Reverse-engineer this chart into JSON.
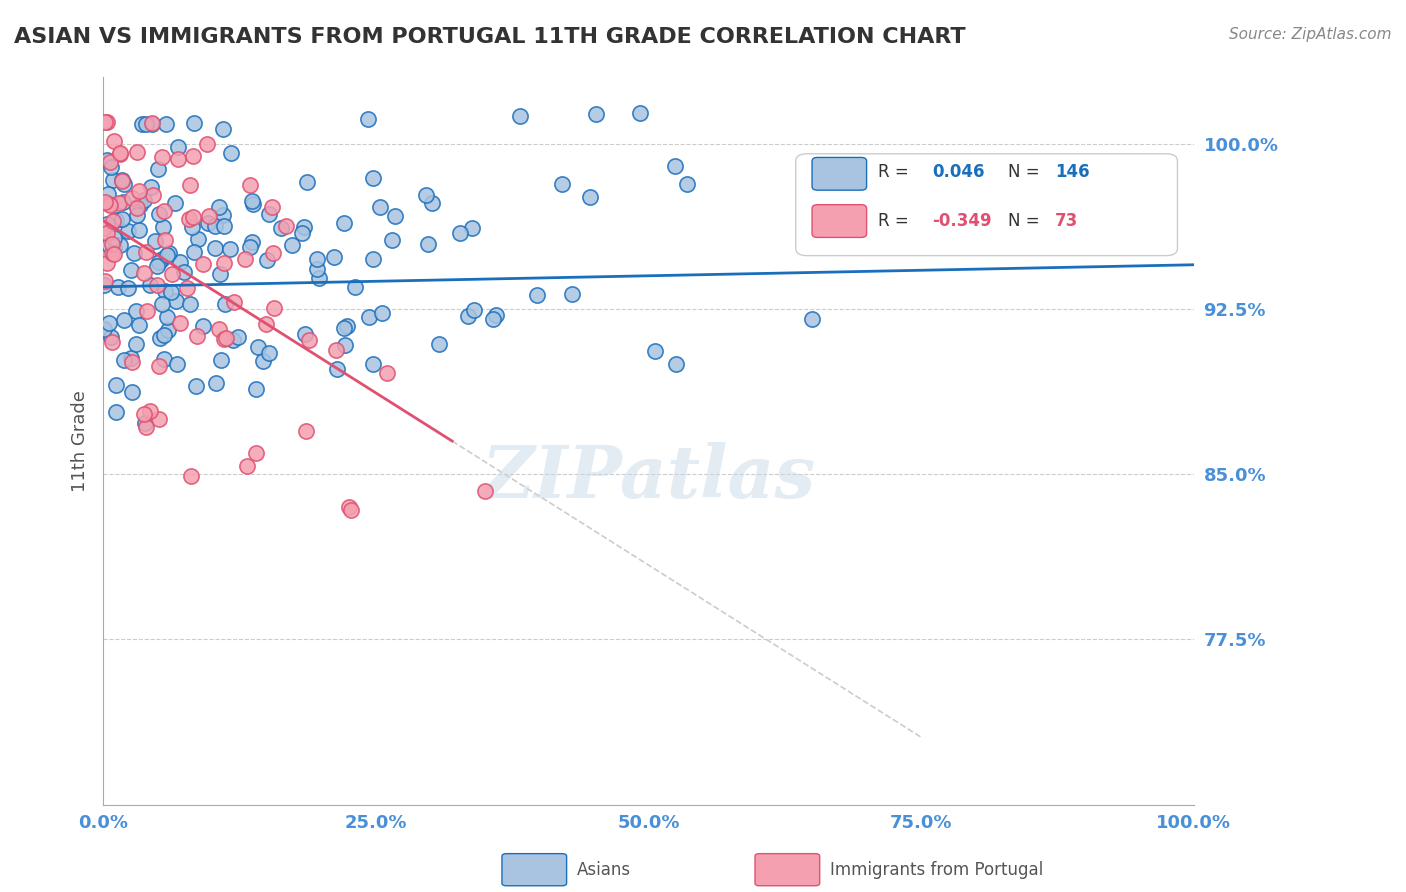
{
  "title": "ASIAN VS IMMIGRANTS FROM PORTUGAL 11TH GRADE CORRELATION CHART",
  "source_text": "Source: ZipAtlas.com",
  "xlabel_bottom": "Asians",
  "xlabel_bottom2": "Immigrants from Portugal",
  "ylabel": "11th Grade",
  "xlim": [
    0.0,
    1.0
  ],
  "ylim": [
    0.7,
    1.03
  ],
  "yticks": [
    0.775,
    0.85,
    0.925,
    1.0
  ],
  "ytick_labels": [
    "77.5%",
    "85.0%",
    "92.5%",
    "100.0%"
  ],
  "xtick_labels_bottom": [
    "0.0%",
    "25.0%",
    "50.0%",
    "75.0%",
    "100.0%"
  ],
  "xticks_bottom": [
    0.0,
    0.25,
    0.5,
    0.75,
    1.0
  ],
  "blue_R": 0.046,
  "blue_N": 146,
  "pink_R": -0.349,
  "pink_N": 73,
  "blue_color": "#a8c4e0",
  "blue_line_color": "#1a6fbd",
  "pink_color": "#f4a0b0",
  "pink_line_color": "#e05070",
  "background_color": "#ffffff",
  "title_color": "#333333",
  "axis_label_color": "#4a90d9",
  "grid_color": "#cccccc",
  "watermark_color": "#c8d8e8",
  "legend_R_color": "#1a6fbd",
  "legend_pink_R_color": "#e05070",
  "blue_trend_start_x": 0.0,
  "blue_trend_start_y": 0.935,
  "blue_trend_end_x": 1.0,
  "blue_trend_end_y": 0.945,
  "pink_trend_start_x": 0.0,
  "pink_trend_start_y": 0.965,
  "pink_trend_end_x": 0.32,
  "pink_trend_end_y": 0.865
}
